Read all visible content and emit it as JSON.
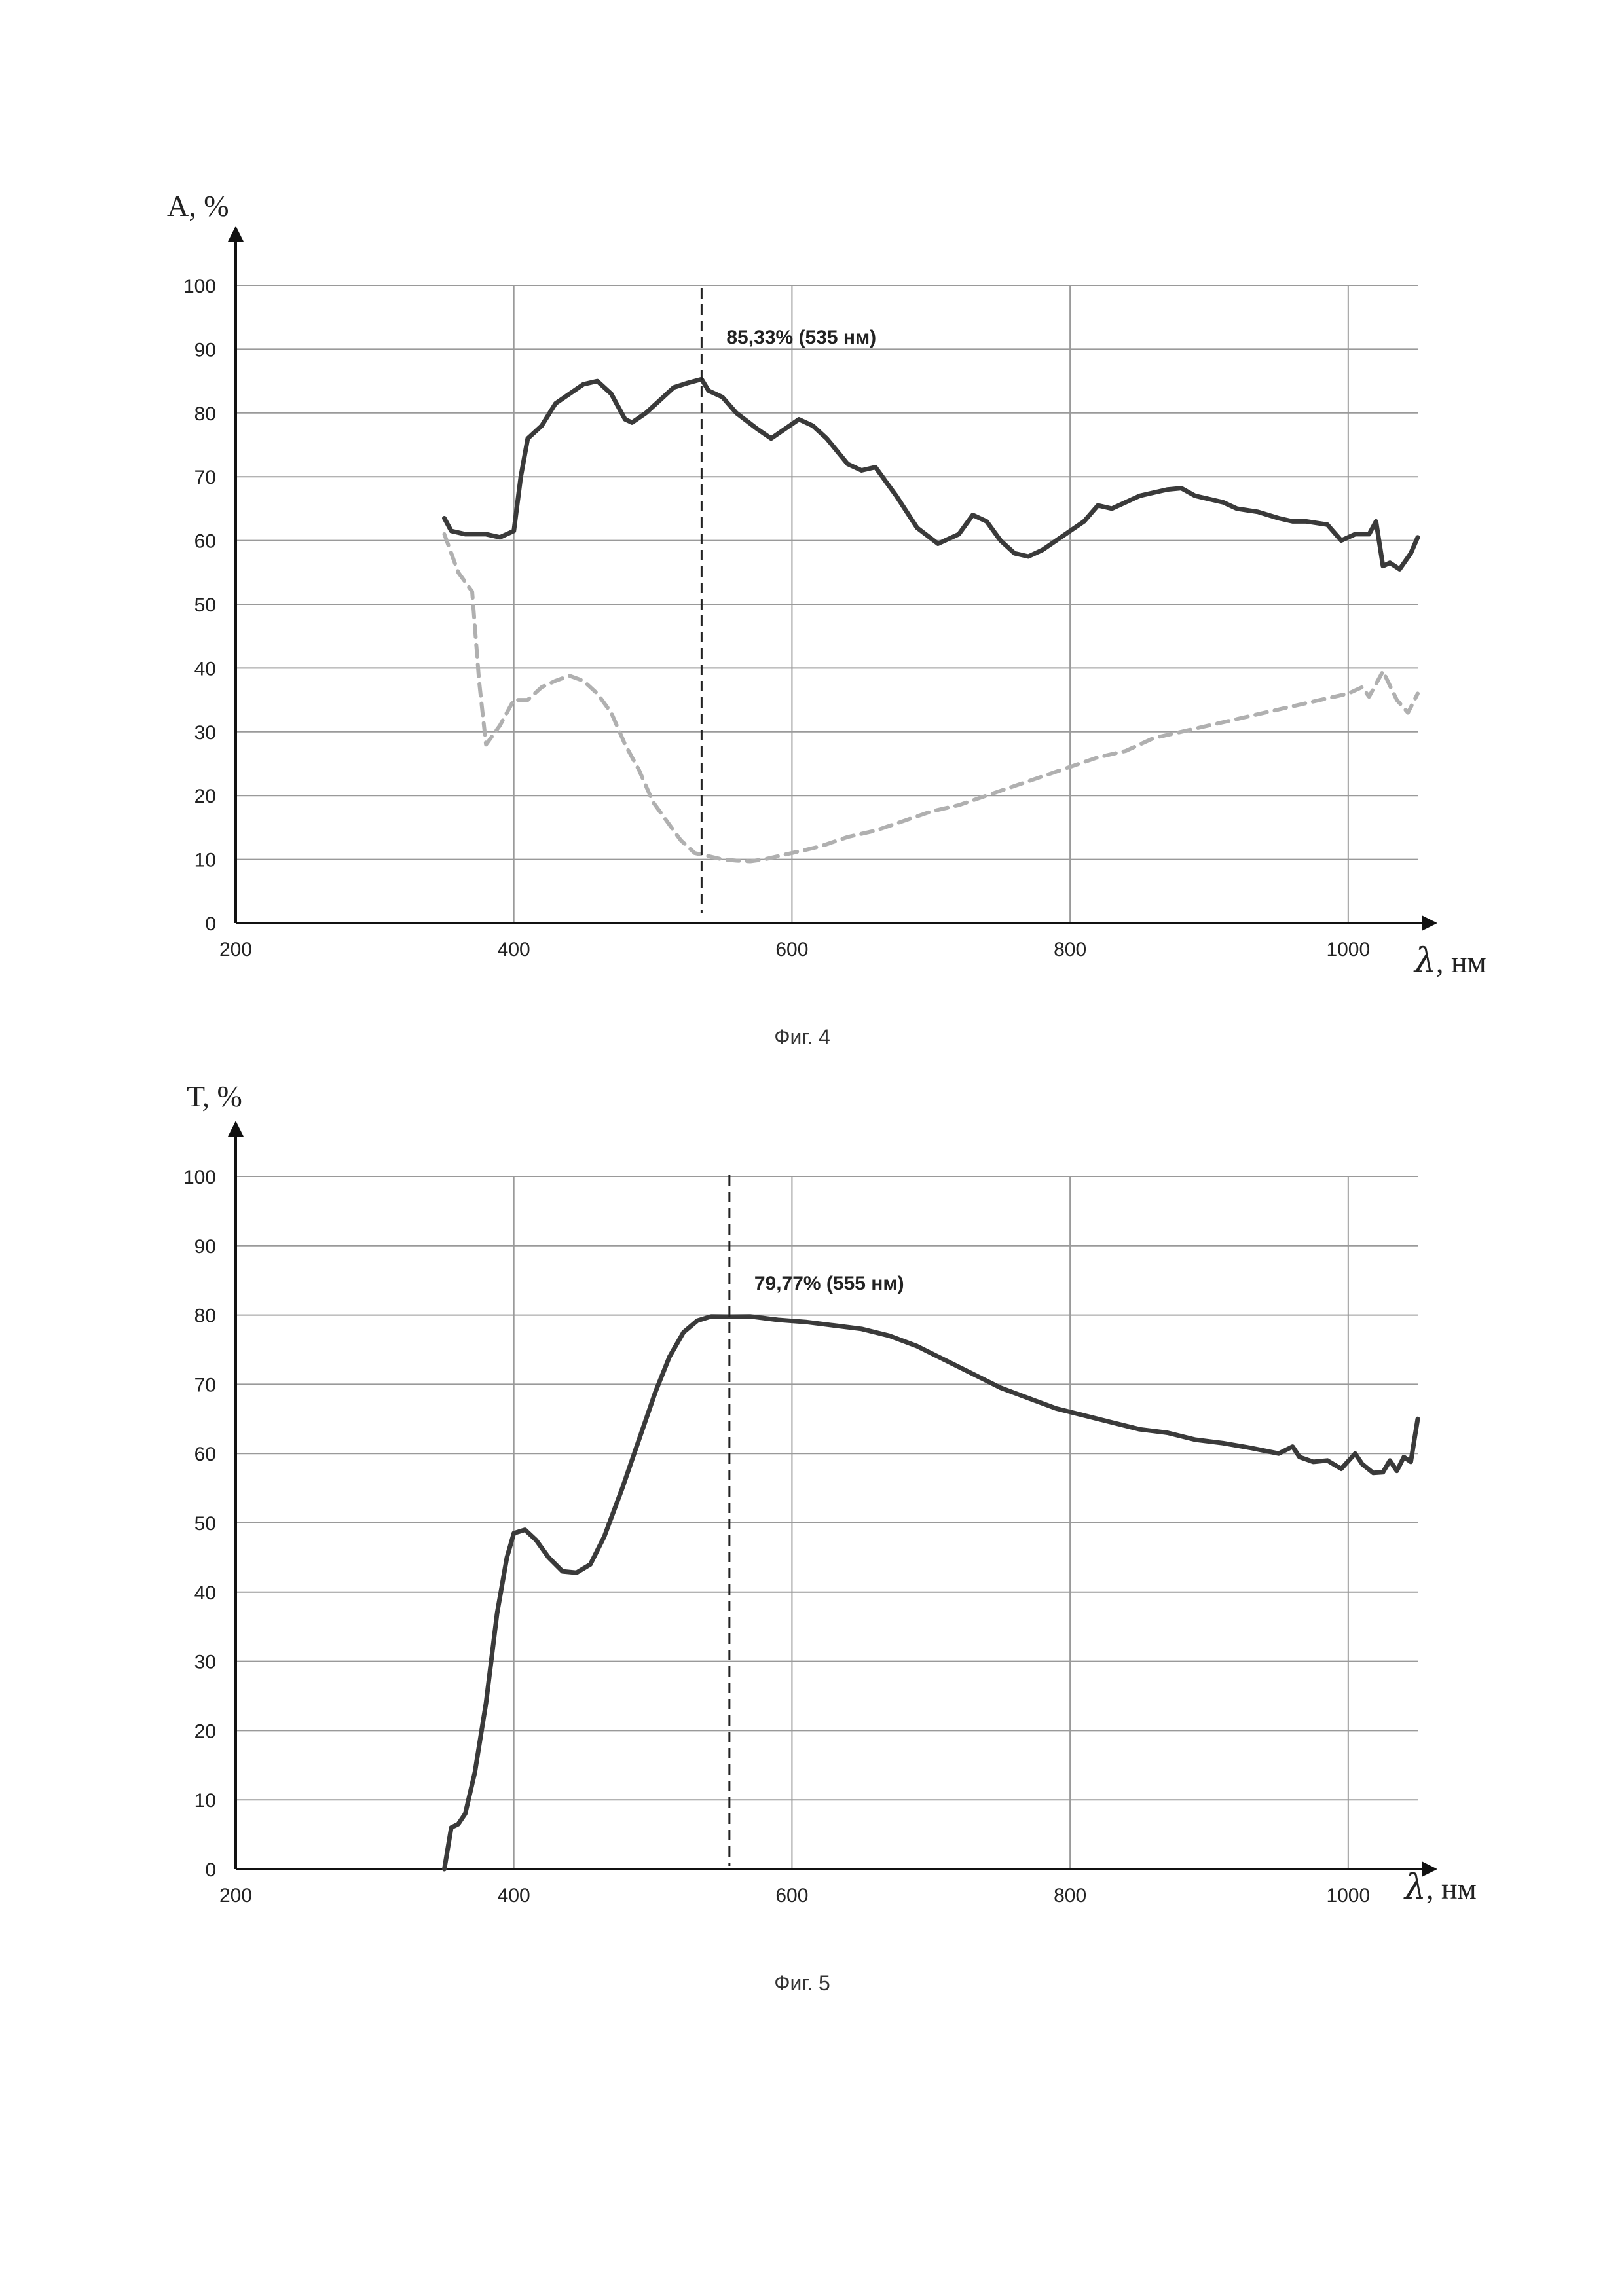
{
  "chart_data": [
    {
      "type": "line",
      "caption": "Фиг. 4",
      "ylabel": "А, %",
      "xlabel_symbol": "λ",
      "xlabel_unit": ", нм",
      "xlim": [
        200,
        1050
      ],
      "ylim": [
        0,
        100
      ],
      "x_ticks": [
        200,
        400,
        600,
        800,
        1000
      ],
      "y_ticks": [
        0,
        10,
        20,
        30,
        40,
        50,
        60,
        70,
        80,
        90,
        100
      ],
      "grid": true,
      "annotation": {
        "x": 535,
        "text": "85,33% (535 нм)"
      },
      "series": [
        {
          "style": "solid",
          "color": "#3a3a3a",
          "points": [
            [
              350,
              63.5
            ],
            [
              355,
              61.5
            ],
            [
              365,
              61
            ],
            [
              380,
              61
            ],
            [
              390,
              60.5
            ],
            [
              400,
              61.5
            ],
            [
              405,
              70
            ],
            [
              410,
              76
            ],
            [
              420,
              78
            ],
            [
              430,
              81.5
            ],
            [
              440,
              83
            ],
            [
              450,
              84.5
            ],
            [
              460,
              85
            ],
            [
              470,
              83
            ],
            [
              480,
              79
            ],
            [
              485,
              78.5
            ],
            [
              495,
              80
            ],
            [
              505,
              82
            ],
            [
              515,
              84
            ],
            [
              525,
              84.7
            ],
            [
              535,
              85.3
            ],
            [
              540,
              83.5
            ],
            [
              550,
              82.5
            ],
            [
              560,
              80
            ],
            [
              575,
              77.5
            ],
            [
              585,
              76
            ],
            [
              595,
              77.5
            ],
            [
              605,
              79
            ],
            [
              615,
              78
            ],
            [
              625,
              76
            ],
            [
              640,
              72
            ],
            [
              650,
              71
            ],
            [
              660,
              71.5
            ],
            [
              675,
              67
            ],
            [
              690,
              62
            ],
            [
              705,
              59.5
            ],
            [
              720,
              61
            ],
            [
              730,
              64
            ],
            [
              740,
              63
            ],
            [
              750,
              60
            ],
            [
              760,
              58
            ],
            [
              770,
              57.5
            ],
            [
              780,
              58.5
            ],
            [
              790,
              60
            ],
            [
              800,
              61.5
            ],
            [
              810,
              63
            ],
            [
              820,
              65.5
            ],
            [
              830,
              65
            ],
            [
              840,
              66
            ],
            [
              850,
              67
            ],
            [
              860,
              67.5
            ],
            [
              870,
              68
            ],
            [
              880,
              68.2
            ],
            [
              890,
              67
            ],
            [
              900,
              66.5
            ],
            [
              910,
              66
            ],
            [
              920,
              65
            ],
            [
              935,
              64.5
            ],
            [
              950,
              63.5
            ],
            [
              960,
              63
            ],
            [
              970,
              63
            ],
            [
              985,
              62.5
            ],
            [
              995,
              60
            ],
            [
              1005,
              61
            ],
            [
              1015,
              61
            ],
            [
              1020,
              63
            ],
            [
              1025,
              56
            ],
            [
              1030,
              56.5
            ],
            [
              1037,
              55.5
            ],
            [
              1045,
              58
            ],
            [
              1050,
              60.5
            ]
          ]
        },
        {
          "style": "dashed",
          "color": "#b0b0b0",
          "points": [
            [
              350,
              61
            ],
            [
              360,
              55
            ],
            [
              370,
              52
            ],
            [
              375,
              38
            ],
            [
              380,
              28
            ],
            [
              390,
              31
            ],
            [
              400,
              35
            ],
            [
              410,
              35
            ],
            [
              420,
              37
            ],
            [
              430,
              38
            ],
            [
              440,
              38.8
            ],
            [
              450,
              38
            ],
            [
              460,
              36
            ],
            [
              470,
              33
            ],
            [
              480,
              28
            ],
            [
              490,
              24
            ],
            [
              500,
              19
            ],
            [
              510,
              16
            ],
            [
              520,
              13
            ],
            [
              530,
              11
            ],
            [
              540,
              10.5
            ],
            [
              550,
              10
            ],
            [
              560,
              9.8
            ],
            [
              570,
              9.7
            ],
            [
              580,
              10
            ],
            [
              590,
              10.5
            ],
            [
              600,
              11
            ],
            [
              620,
              12
            ],
            [
              640,
              13.5
            ],
            [
              660,
              14.5
            ],
            [
              680,
              16
            ],
            [
              700,
              17.5
            ],
            [
              720,
              18.5
            ],
            [
              740,
              20
            ],
            [
              760,
              21.5
            ],
            [
              780,
              23
            ],
            [
              800,
              24.5
            ],
            [
              820,
              26
            ],
            [
              840,
              27
            ],
            [
              860,
              29
            ],
            [
              880,
              30
            ],
            [
              900,
              31
            ],
            [
              920,
              32
            ],
            [
              940,
              33
            ],
            [
              960,
              34
            ],
            [
              980,
              35
            ],
            [
              1000,
              36
            ],
            [
              1010,
              37
            ],
            [
              1015,
              35.5
            ],
            [
              1025,
              39.5
            ],
            [
              1035,
              35
            ],
            [
              1043,
              33
            ],
            [
              1050,
              36
            ]
          ]
        }
      ]
    },
    {
      "type": "line",
      "caption": "Фиг. 5",
      "ylabel": "Т, %",
      "xlabel_symbol": "λ",
      "xlabel_unit": ", нм",
      "xlim": [
        200,
        1050
      ],
      "ylim": [
        0,
        100
      ],
      "x_ticks": [
        200,
        400,
        600,
        800,
        1000
      ],
      "y_ticks": [
        0,
        10,
        20,
        30,
        40,
        50,
        60,
        70,
        80,
        90,
        100
      ],
      "grid": true,
      "annotation": {
        "x": 555,
        "text": "79,77% (555 нм)"
      },
      "series": [
        {
          "style": "solid",
          "color": "#3a3a3a",
          "points": [
            [
              350,
              0
            ],
            [
              355,
              6
            ],
            [
              360,
              6.5
            ],
            [
              365,
              8
            ],
            [
              372,
              14
            ],
            [
              380,
              24
            ],
            [
              388,
              37
            ],
            [
              395,
              45
            ],
            [
              400,
              48.5
            ],
            [
              408,
              49
            ],
            [
              416,
              47.5
            ],
            [
              425,
              45
            ],
            [
              435,
              43
            ],
            [
              445,
              42.8
            ],
            [
              455,
              44
            ],
            [
              465,
              48
            ],
            [
              478,
              55
            ],
            [
              490,
              62
            ],
            [
              502,
              69
            ],
            [
              512,
              74
            ],
            [
              522,
              77.5
            ],
            [
              532,
              79.2
            ],
            [
              542,
              79.8
            ],
            [
              555,
              79.77
            ],
            [
              570,
              79.8
            ],
            [
              590,
              79.3
            ],
            [
              610,
              79
            ],
            [
              630,
              78.5
            ],
            [
              650,
              78
            ],
            [
              670,
              77
            ],
            [
              690,
              75.5
            ],
            [
              710,
              73.5
            ],
            [
              730,
              71.5
            ],
            [
              750,
              69.5
            ],
            [
              770,
              68
            ],
            [
              790,
              66.5
            ],
            [
              810,
              65.5
            ],
            [
              830,
              64.5
            ],
            [
              850,
              63.5
            ],
            [
              870,
              63
            ],
            [
              890,
              62
            ],
            [
              910,
              61.5
            ],
            [
              930,
              60.8
            ],
            [
              950,
              60
            ],
            [
              960,
              61
            ],
            [
              965,
              59.5
            ],
            [
              975,
              58.8
            ],
            [
              985,
              59
            ],
            [
              995,
              57.8
            ],
            [
              1005,
              60
            ],
            [
              1010,
              58.5
            ],
            [
              1018,
              57.2
            ],
            [
              1025,
              57.3
            ],
            [
              1030,
              59
            ],
            [
              1035,
              57.5
            ],
            [
              1040,
              59.5
            ],
            [
              1045,
              58.8
            ],
            [
              1050,
              65
            ]
          ]
        }
      ]
    }
  ]
}
